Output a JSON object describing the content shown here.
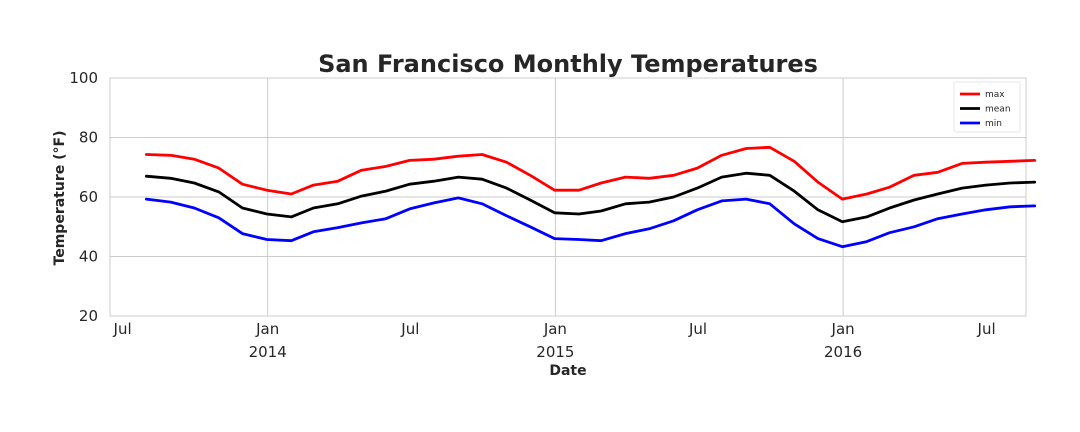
{
  "chart_data": {
    "type": "line",
    "title": "San Francisco Monthly Temperatures",
    "xlabel": "Date",
    "ylabel": "Temperature (°F)",
    "ylim": [
      20,
      100
    ],
    "yticks": [
      "20",
      "40",
      "60",
      "80",
      "100"
    ],
    "xlim": [
      "2013-06-15",
      "2016-08-20"
    ],
    "xticks": [
      {
        "date": "2013-07-01",
        "label": "Jul",
        "year": ""
      },
      {
        "date": "2014-01-01",
        "label": "Jan",
        "year": "2014"
      },
      {
        "date": "2014-07-01",
        "label": "Jul",
        "year": ""
      },
      {
        "date": "2015-01-01",
        "label": "Jan",
        "year": "2015"
      },
      {
        "date": "2015-07-01",
        "label": "Jul",
        "year": ""
      },
      {
        "date": "2016-01-01",
        "label": "Jan",
        "year": "2016"
      },
      {
        "date": "2016-07-01",
        "label": "Jul",
        "year": ""
      }
    ],
    "grid": true,
    "legend_position": "top-right",
    "x": [
      "2013-07-31",
      "2013-08-31",
      "2013-09-30",
      "2013-10-31",
      "2013-11-30",
      "2013-12-31",
      "2014-01-31",
      "2014-02-28",
      "2014-03-31",
      "2014-04-30",
      "2014-05-31",
      "2014-06-30",
      "2014-07-31",
      "2014-08-31",
      "2014-09-30",
      "2014-10-31",
      "2014-11-30",
      "2014-12-31",
      "2015-01-31",
      "2015-02-28",
      "2015-03-31",
      "2015-04-30",
      "2015-05-31",
      "2015-06-30",
      "2015-07-31",
      "2015-08-31",
      "2015-09-30",
      "2015-10-31",
      "2015-11-30",
      "2015-12-31",
      "2016-01-31",
      "2016-02-29",
      "2016-03-31",
      "2016-04-30",
      "2016-05-31",
      "2016-06-30",
      "2016-07-31",
      "2016-08-31"
    ],
    "series": [
      {
        "name": "max",
        "color": "#ff0000",
        "values": [
          74.3,
          74.0,
          72.7,
          69.7,
          64.3,
          62.3,
          61.0,
          64.0,
          65.3,
          69.0,
          70.3,
          72.3,
          72.7,
          73.7,
          74.3,
          71.7,
          67.3,
          62.3,
          62.3,
          64.7,
          66.7,
          66.3,
          67.3,
          69.7,
          74.0,
          76.3,
          76.7,
          72.0,
          65.0,
          59.3,
          61.0,
          63.3,
          67.3,
          68.3,
          71.3,
          71.7,
          72.0,
          72.3
        ]
      },
      {
        "name": "mean",
        "color": "#000000",
        "values": [
          67.0,
          66.3,
          64.7,
          61.7,
          56.3,
          54.3,
          53.3,
          56.3,
          57.7,
          60.3,
          62.0,
          64.3,
          65.3,
          66.7,
          66.0,
          63.0,
          59.0,
          54.7,
          54.3,
          55.3,
          57.7,
          58.3,
          60.0,
          63.0,
          66.7,
          68.0,
          67.3,
          62.0,
          55.7,
          51.7,
          53.3,
          56.3,
          59.0,
          61.0,
          63.0,
          64.0,
          64.7,
          65.0
        ]
      },
      {
        "name": "min",
        "color": "#0000ff",
        "values": [
          59.3,
          58.3,
          56.3,
          53.0,
          47.7,
          45.7,
          45.3,
          48.3,
          49.7,
          51.3,
          52.7,
          56.0,
          58.0,
          59.7,
          57.7,
          53.7,
          50.0,
          46.0,
          45.7,
          45.3,
          47.7,
          49.3,
          52.0,
          55.7,
          58.7,
          59.3,
          57.7,
          51.0,
          46.0,
          43.3,
          45.0,
          48.0,
          50.0,
          52.7,
          54.3,
          55.7,
          56.7,
          57.0
        ]
      }
    ]
  }
}
